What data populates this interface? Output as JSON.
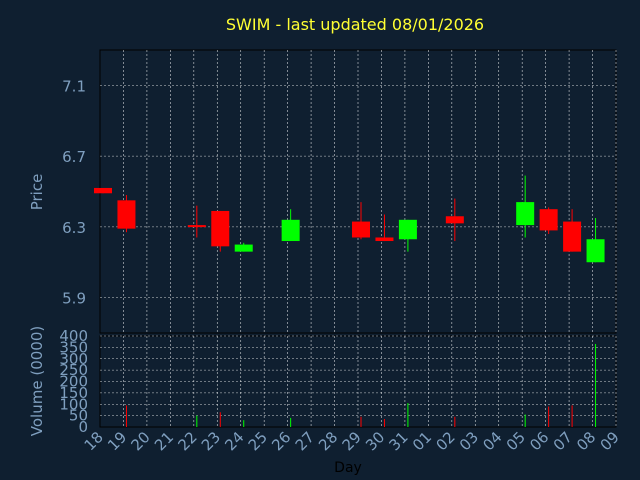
{
  "colors": {
    "background": "#0f1f30",
    "title": "#ffff33",
    "axis_text": "#7f9fbf",
    "grid": "#ffffff",
    "up": "#00ff00",
    "down": "#ff0000",
    "frame": "#ffffff"
  },
  "chart_data": [
    {
      "type": "candlestick",
      "title": "SWIM - last updated 08/01/2026",
      "ylabel": "Price",
      "ylim": [
        5.7,
        7.3
      ],
      "yticks": [
        "7.1",
        "6.7",
        "6.3",
        "5.9"
      ],
      "ytick_values": [
        7.1,
        6.7,
        6.3,
        5.9
      ],
      "grid": true,
      "x_categories": [
        "18",
        "19",
        "20",
        "21",
        "22",
        "23",
        "24",
        "25",
        "26",
        "27",
        "28",
        "29",
        "30",
        "31",
        "01",
        "02",
        "03",
        "04",
        "05",
        "06",
        "07",
        "08",
        "09"
      ],
      "candles": [
        {
          "x": "18",
          "open": 6.52,
          "close": 6.49,
          "high": 6.52,
          "low": 6.49
        },
        {
          "x": "19",
          "open": 6.45,
          "close": 6.29,
          "high": 6.48,
          "low": 6.27
        },
        {
          "x": "22",
          "open": 6.31,
          "close": 6.3,
          "high": 6.42,
          "low": 6.24
        },
        {
          "x": "23",
          "open": 6.39,
          "close": 6.19,
          "high": 6.39,
          "low": 6.16
        },
        {
          "x": "24",
          "open": 6.16,
          "close": 6.2,
          "high": 6.21,
          "low": 6.16
        },
        {
          "x": "26",
          "open": 6.22,
          "close": 6.34,
          "high": 6.4,
          "low": 6.22
        },
        {
          "x": "29",
          "open": 6.33,
          "close": 6.24,
          "high": 6.44,
          "low": 6.23
        },
        {
          "x": "30",
          "open": 6.24,
          "close": 6.22,
          "high": 6.37,
          "low": 6.22
        },
        {
          "x": "31",
          "open": 6.23,
          "close": 6.34,
          "high": 6.34,
          "low": 6.16
        },
        {
          "x": "02",
          "open": 6.36,
          "close": 6.32,
          "high": 6.46,
          "low": 6.22
        },
        {
          "x": "05",
          "open": 6.31,
          "close": 6.44,
          "high": 6.59,
          "low": 6.24
        },
        {
          "x": "06",
          "open": 6.4,
          "close": 6.28,
          "high": 6.41,
          "low": 6.26
        },
        {
          "x": "07",
          "open": 6.33,
          "close": 6.16,
          "high": 6.4,
          "low": 6.16
        },
        {
          "x": "08",
          "open": 6.1,
          "close": 6.23,
          "high": 6.35,
          "low": 6.1
        }
      ]
    },
    {
      "type": "bar",
      "ylabel": "Volume (0000)",
      "xlabel": "Day",
      "ylim": [
        0,
        400
      ],
      "yticks": [
        "400",
        "350",
        "300",
        "250",
        "200",
        "150",
        "100",
        "50",
        "0"
      ],
      "ytick_values": [
        400,
        350,
        300,
        250,
        200,
        150,
        100,
        50,
        0
      ],
      "grid": true,
      "categories": [
        "18",
        "19",
        "20",
        "21",
        "22",
        "23",
        "24",
        "25",
        "26",
        "27",
        "28",
        "29",
        "30",
        "31",
        "01",
        "02",
        "03",
        "04",
        "05",
        "06",
        "07",
        "08",
        "09"
      ],
      "bars": [
        {
          "x": "19",
          "value": 95,
          "color": "down"
        },
        {
          "x": "22",
          "value": 50,
          "color": "up"
        },
        {
          "x": "23",
          "value": 65,
          "color": "down"
        },
        {
          "x": "24",
          "value": 30,
          "color": "up"
        },
        {
          "x": "26",
          "value": 40,
          "color": "up"
        },
        {
          "x": "29",
          "value": 45,
          "color": "down"
        },
        {
          "x": "30",
          "value": 35,
          "color": "down"
        },
        {
          "x": "31",
          "value": 105,
          "color": "up"
        },
        {
          "x": "02",
          "value": 45,
          "color": "down"
        },
        {
          "x": "05",
          "value": 55,
          "color": "up"
        },
        {
          "x": "06",
          "value": 90,
          "color": "down"
        },
        {
          "x": "07",
          "value": 95,
          "color": "down"
        },
        {
          "x": "08",
          "value": 365,
          "color": "up"
        }
      ]
    }
  ]
}
